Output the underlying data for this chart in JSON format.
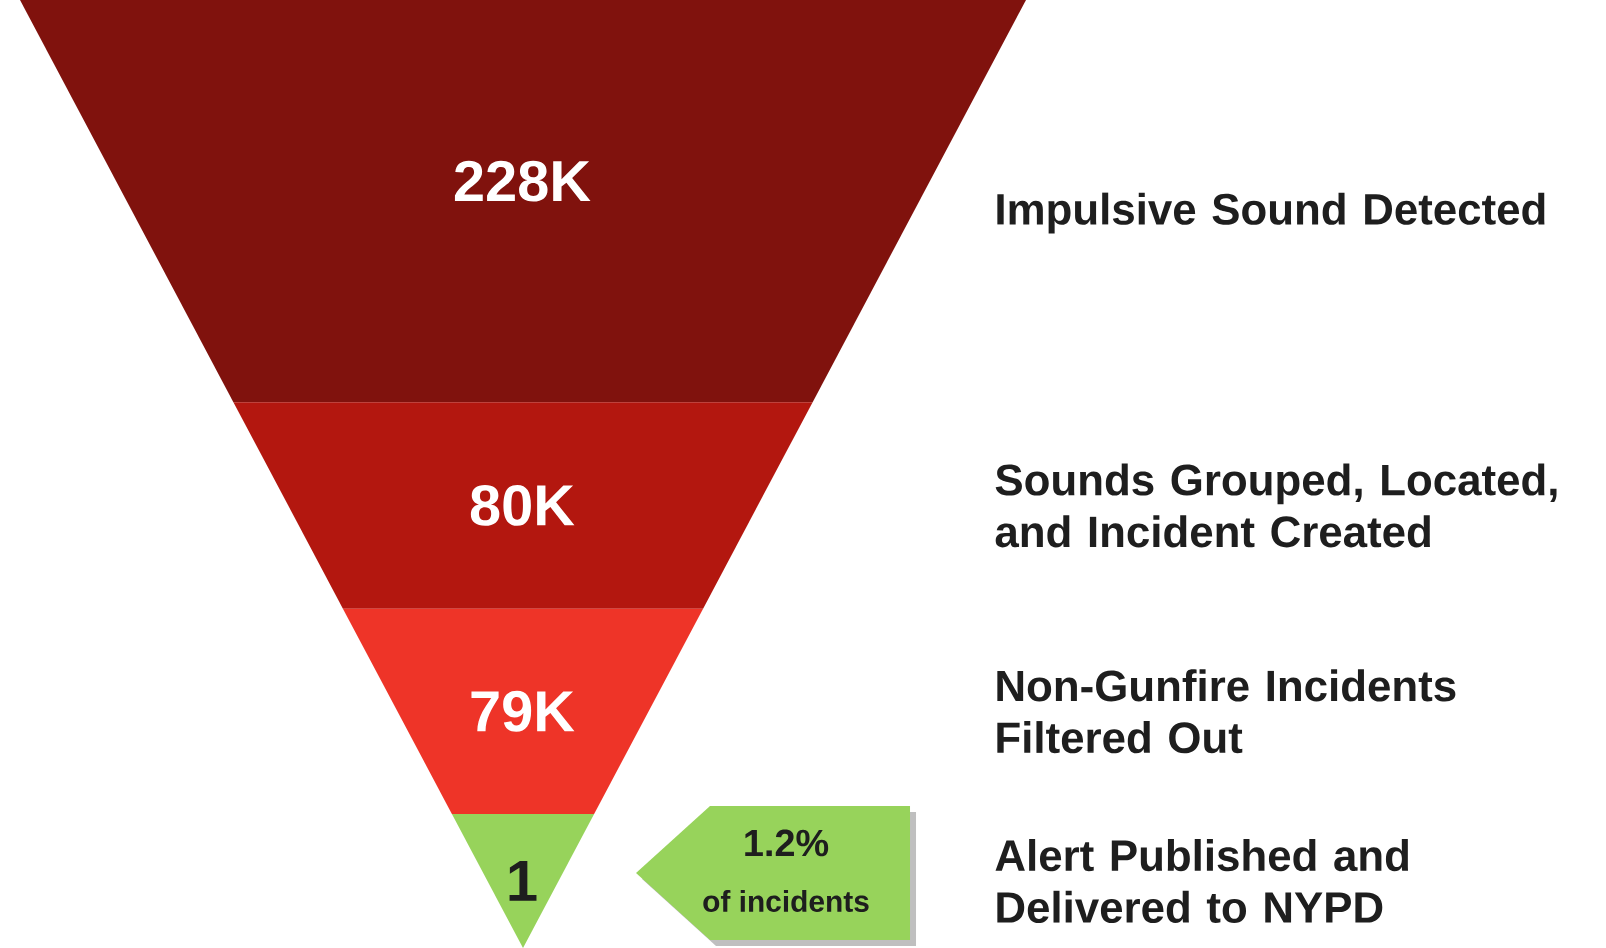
{
  "chart_data": {
    "type": "other",
    "categories": [
      "Impulsive Sound Detected",
      "Sounds Grouped, Located, and Incident Created",
      "Non-Gunfire Incidents Filtered Out",
      "Alert Published and Delivered to NYPD"
    ],
    "values": [
      228000,
      80000,
      79000,
      1
    ],
    "value_labels": [
      "228K",
      "80K",
      "79K",
      "1"
    ],
    "colors": [
      "#80120d",
      "#b3170f",
      "#ee3428",
      "#97d35b"
    ],
    "annotations": [
      "1.2%",
      "of incidents"
    ]
  }
}
